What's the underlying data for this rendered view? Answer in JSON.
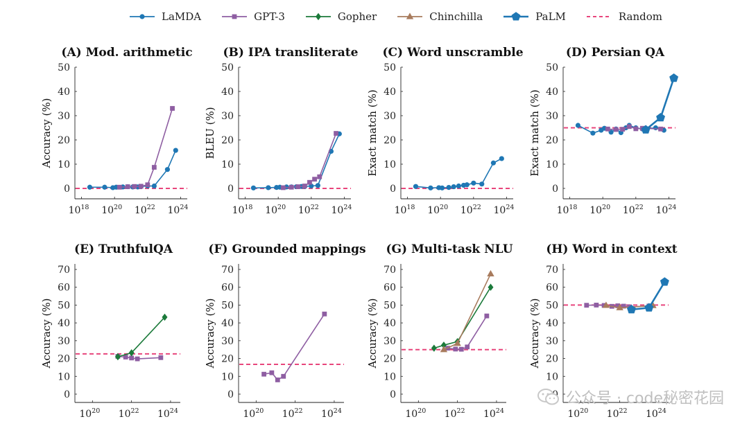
{
  "legend": {
    "items": [
      {
        "label": "LaMDA",
        "marker": "circle",
        "color": "#1f77b4",
        "dash": false
      },
      {
        "label": "GPT-3",
        "marker": "square",
        "color": "#8e5ea2",
        "dash": false
      },
      {
        "label": "Gopher",
        "marker": "diamond",
        "color": "#1b7a3a",
        "dash": false
      },
      {
        "label": "Chinchilla",
        "marker": "triangle",
        "color": "#a87b5d",
        "dash": false
      },
      {
        "label": "PaLM",
        "marker": "pentagon",
        "color": "#1f77b4",
        "dash": false
      },
      {
        "label": "Random",
        "marker": "none",
        "color": "#e8457c",
        "dash": true
      }
    ]
  },
  "watermark": {
    "text": "公众号 · code秘密花园"
  },
  "chart_data": [
    {
      "type": "line",
      "title": "(A) Mod. arithmetic",
      "ylabel": "Accuracy (%)",
      "xscale": "log",
      "xlim_exp": [
        17.6,
        24.4
      ],
      "xticks": [
        {
          "exp": 18,
          "label": "10",
          "sup": "18"
        },
        {
          "exp": 20,
          "label": "10",
          "sup": "20"
        },
        {
          "exp": 22,
          "label": "10",
          "sup": "22"
        },
        {
          "exp": 24,
          "label": "10",
          "sup": "24"
        }
      ],
      "ylim": [
        -4,
        52
      ],
      "yticks": [
        0,
        10,
        20,
        30,
        40,
        50
      ],
      "random": 0,
      "series": [
        {
          "name": "LaMDA",
          "x": [
            18.5,
            19.4,
            19.9,
            20.1,
            20.5,
            20.8,
            21.1,
            21.4,
            21.6,
            22.0,
            22.4,
            23.2,
            23.7
          ],
          "y": [
            0.5,
            0.5,
            0.3,
            0.5,
            0.6,
            0.7,
            0.6,
            0.6,
            0.8,
            1.0,
            1.0,
            7.8,
            15.7
          ]
        },
        {
          "name": "GPT-3",
          "x": [
            20.3,
            20.8,
            21.2,
            21.6,
            22.0,
            22.4,
            23.5
          ],
          "y": [
            0.5,
            0.7,
            0.8,
            0.9,
            1.5,
            8.7,
            33.0
          ]
        }
      ]
    },
    {
      "type": "line",
      "title": "(B) IPA transliterate",
      "ylabel": "BLEU (%)",
      "xscale": "log",
      "xlim_exp": [
        17.6,
        24.4
      ],
      "xticks": [
        {
          "exp": 18,
          "label": "10",
          "sup": "18"
        },
        {
          "exp": 20,
          "label": "10",
          "sup": "20"
        },
        {
          "exp": 22,
          "label": "10",
          "sup": "22"
        },
        {
          "exp": 24,
          "label": "10",
          "sup": "24"
        }
      ],
      "ylim": [
        -4,
        52
      ],
      "yticks": [
        0,
        10,
        20,
        30,
        40,
        50
      ],
      "random": 0,
      "series": [
        {
          "name": "LaMDA",
          "x": [
            18.5,
            19.4,
            19.9,
            20.1,
            20.5,
            20.8,
            21.1,
            21.4,
            21.6,
            22.0,
            22.4,
            23.2,
            23.7
          ],
          "y": [
            0.2,
            0.3,
            0.4,
            0.5,
            0.6,
            0.6,
            0.7,
            0.8,
            0.8,
            1.0,
            1.2,
            15.3,
            22.5
          ]
        },
        {
          "name": "GPT-3",
          "x": [
            20.3,
            20.8,
            21.2,
            21.6,
            21.9,
            22.2,
            22.5,
            23.5
          ],
          "y": [
            0.3,
            0.5,
            0.7,
            1.0,
            2.5,
            3.8,
            4.8,
            22.7
          ]
        }
      ]
    },
    {
      "type": "line",
      "title": "(C) Word unscramble",
      "ylabel": "Exact match (%)",
      "xscale": "log",
      "xlim_exp": [
        17.6,
        24.4
      ],
      "xticks": [
        {
          "exp": 18,
          "label": "10",
          "sup": "18"
        },
        {
          "exp": 20,
          "label": "10",
          "sup": "20"
        },
        {
          "exp": 22,
          "label": "10",
          "sup": "22"
        },
        {
          "exp": 24,
          "label": "10",
          "sup": "24"
        }
      ],
      "ylim": [
        -4,
        52
      ],
      "yticks": [
        0,
        10,
        20,
        30,
        40,
        50
      ],
      "random": 0,
      "series": [
        {
          "name": "LaMDA",
          "x": [
            18.5,
            19.4,
            19.9,
            20.1,
            20.5,
            20.8,
            21.1,
            21.4,
            21.6,
            22.0,
            22.5,
            23.2,
            23.7
          ],
          "y": [
            0.8,
            0.2,
            0.3,
            0.2,
            0.4,
            0.7,
            1.0,
            1.3,
            1.5,
            2.2,
            1.8,
            10.5,
            12.3
          ]
        }
      ]
    },
    {
      "type": "line",
      "title": "(D) Persian QA",
      "ylabel": "Exact match (%)",
      "xscale": "log",
      "xlim_exp": [
        17.6,
        24.4
      ],
      "xticks": [
        {
          "exp": 18,
          "label": "10",
          "sup": "18"
        },
        {
          "exp": 20,
          "label": "10",
          "sup": "20"
        },
        {
          "exp": 22,
          "label": "10",
          "sup": "22"
        },
        {
          "exp": 24,
          "label": "10",
          "sup": "24"
        }
      ],
      "ylim": [
        -4,
        52
      ],
      "yticks": [
        0,
        10,
        20,
        30,
        40,
        50
      ],
      "random": 25,
      "series": [
        {
          "name": "LaMDA",
          "x": [
            18.5,
            19.4,
            19.9,
            20.1,
            20.5,
            20.8,
            21.1,
            21.4,
            21.6,
            22.0,
            22.4,
            23.2,
            23.7
          ],
          "y": [
            26.0,
            22.8,
            24.0,
            24.8,
            23.2,
            24.5,
            23.0,
            25.0,
            26.0,
            25.0,
            24.5,
            25.0,
            24.0
          ]
        },
        {
          "name": "GPT-3",
          "x": [
            20.3,
            20.8,
            21.2,
            21.6,
            22.0,
            22.4,
            23.5
          ],
          "y": [
            24.5,
            24.3,
            24.4,
            25.5,
            24.6,
            24.8,
            24.5
          ]
        },
        {
          "name": "PaLM",
          "x": [
            22.6,
            23.5,
            24.3
          ],
          "y": [
            24.2,
            29.2,
            45.5
          ]
        }
      ]
    },
    {
      "type": "line",
      "title": "(E) TruthfulQA",
      "ylabel": "Accuracy (%)",
      "xscale": "log",
      "xlim_exp": [
        19.1,
        24.5
      ],
      "xticks": [
        {
          "exp": 20,
          "label": "10",
          "sup": "20"
        },
        {
          "exp": 22,
          "label": "10",
          "sup": "22"
        },
        {
          "exp": 24,
          "label": "10",
          "sup": "24"
        }
      ],
      "ylim": [
        -2,
        72
      ],
      "yticks": [
        0,
        10,
        20,
        30,
        40,
        50,
        60,
        70
      ],
      "random": 22.6,
      "series": [
        {
          "name": "GPT-3",
          "x": [
            21.3,
            21.7,
            22.0,
            22.3,
            23.5
          ],
          "y": [
            21.2,
            20.8,
            20.3,
            19.8,
            20.5
          ]
        },
        {
          "name": "Gopher",
          "x": [
            21.3,
            22.0,
            23.7
          ],
          "y": [
            21.0,
            23.2,
            43.2
          ]
        }
      ]
    },
    {
      "type": "line",
      "title": "(F) Grounded mappings",
      "ylabel": "Accuracy (%)",
      "xscale": "log",
      "xlim_exp": [
        19.1,
        24.5
      ],
      "xticks": [
        {
          "exp": 20,
          "label": "10",
          "sup": "20"
        },
        {
          "exp": 22,
          "label": "10",
          "sup": "22"
        },
        {
          "exp": 24,
          "label": "10",
          "sup": "24"
        }
      ],
      "ylim": [
        -2,
        72
      ],
      "yticks": [
        0,
        10,
        20,
        30,
        40,
        50,
        60,
        70
      ],
      "random": 16.7,
      "series": [
        {
          "name": "GPT-3",
          "x": [
            20.4,
            20.8,
            21.1,
            21.4,
            23.5
          ],
          "y": [
            11.2,
            12.0,
            8.0,
            10.0,
            45.0
          ]
        }
      ]
    },
    {
      "type": "line",
      "title": "(G) Multi-task NLU",
      "ylabel": "Accuracy (%)",
      "xscale": "log",
      "xlim_exp": [
        19.1,
        24.5
      ],
      "xticks": [
        {
          "exp": 20,
          "label": "10",
          "sup": "20"
        },
        {
          "exp": 22,
          "label": "10",
          "sup": "22"
        },
        {
          "exp": 24,
          "label": "10",
          "sup": "24"
        }
      ],
      "ylim": [
        -2,
        72
      ],
      "yticks": [
        0,
        10,
        20,
        30,
        40,
        50,
        60,
        70
      ],
      "random": 25,
      "series": [
        {
          "name": "GPT-3",
          "x": [
            21.5,
            21.9,
            22.2,
            22.5,
            23.5
          ],
          "y": [
            25.8,
            25.3,
            25.2,
            26.5,
            43.9
          ]
        },
        {
          "name": "Gopher",
          "x": [
            20.8,
            21.3,
            22.0,
            23.7
          ],
          "y": [
            25.8,
            27.5,
            29.5,
            60.0
          ]
        },
        {
          "name": "Chinchilla",
          "x": [
            21.3,
            22.0,
            23.7
          ],
          "y": [
            25.0,
            28.5,
            67.5
          ]
        }
      ]
    },
    {
      "type": "line",
      "title": "(H) Word in context",
      "ylabel": "Accuracy (%)",
      "xscale": "log",
      "xlim_exp": [
        19.1,
        24.5
      ],
      "xticks": [
        {
          "exp": 20,
          "label": "10",
          "sup": "20"
        },
        {
          "exp": 22,
          "label": "10",
          "sup": "22"
        },
        {
          "exp": 24,
          "label": "10",
          "sup": "24"
        }
      ],
      "ylim": [
        -2,
        72
      ],
      "yticks": [
        0,
        10,
        20,
        30,
        40,
        50,
        60,
        70
      ],
      "random": 50,
      "series": [
        {
          "name": "GPT-3",
          "x": [
            20.3,
            20.8,
            21.2,
            21.6,
            21.9,
            22.2,
            22.5,
            23.5
          ],
          "y": [
            49.9,
            50.0,
            49.8,
            49.3,
            49.6,
            49.4,
            49.0,
            49.5
          ]
        },
        {
          "name": "Chinchilla",
          "x": [
            21.3,
            22.0,
            23.7
          ],
          "y": [
            49.8,
            48.5,
            49.7
          ]
        },
        {
          "name": "PaLM",
          "x": [
            22.6,
            23.5,
            24.3
          ],
          "y": [
            47.5,
            48.5,
            63.0
          ]
        }
      ]
    }
  ]
}
